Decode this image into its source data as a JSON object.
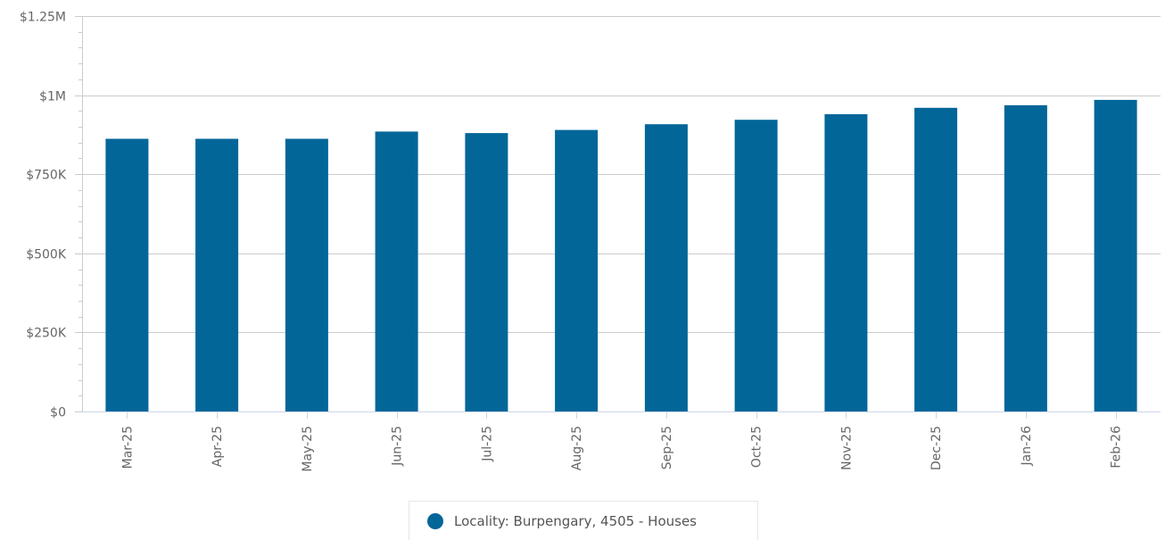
{
  "chart_data": {
    "type": "bar",
    "categories": [
      "Mar-25",
      "Apr-25",
      "May-25",
      "Jun-25",
      "Jul-25",
      "Aug-25",
      "Sep-25",
      "Oct-25",
      "Nov-25",
      "Dec-25",
      "Jan-26",
      "Feb-26"
    ],
    "series": [
      {
        "name": "Locality: Burpengary, 4505 - Houses",
        "color": "#026699",
        "values": [
          862000,
          862000,
          862000,
          885000,
          880000,
          890000,
          908000,
          922000,
          940000,
          960000,
          968000,
          985000
        ]
      }
    ],
    "y_ticks": [
      {
        "value": 0,
        "label": "$0"
      },
      {
        "value": 250000,
        "label": "$250K"
      },
      {
        "value": 500000,
        "label": "$500K"
      },
      {
        "value": 750000,
        "label": "$750K"
      },
      {
        "value": 1000000,
        "label": "$1M"
      },
      {
        "value": 1250000,
        "label": "$1.25M"
      }
    ],
    "ylim": [
      0,
      1250000
    ],
    "grid": true,
    "legend_position": "bottom-center",
    "title": "",
    "xlabel": "",
    "ylabel": ""
  }
}
